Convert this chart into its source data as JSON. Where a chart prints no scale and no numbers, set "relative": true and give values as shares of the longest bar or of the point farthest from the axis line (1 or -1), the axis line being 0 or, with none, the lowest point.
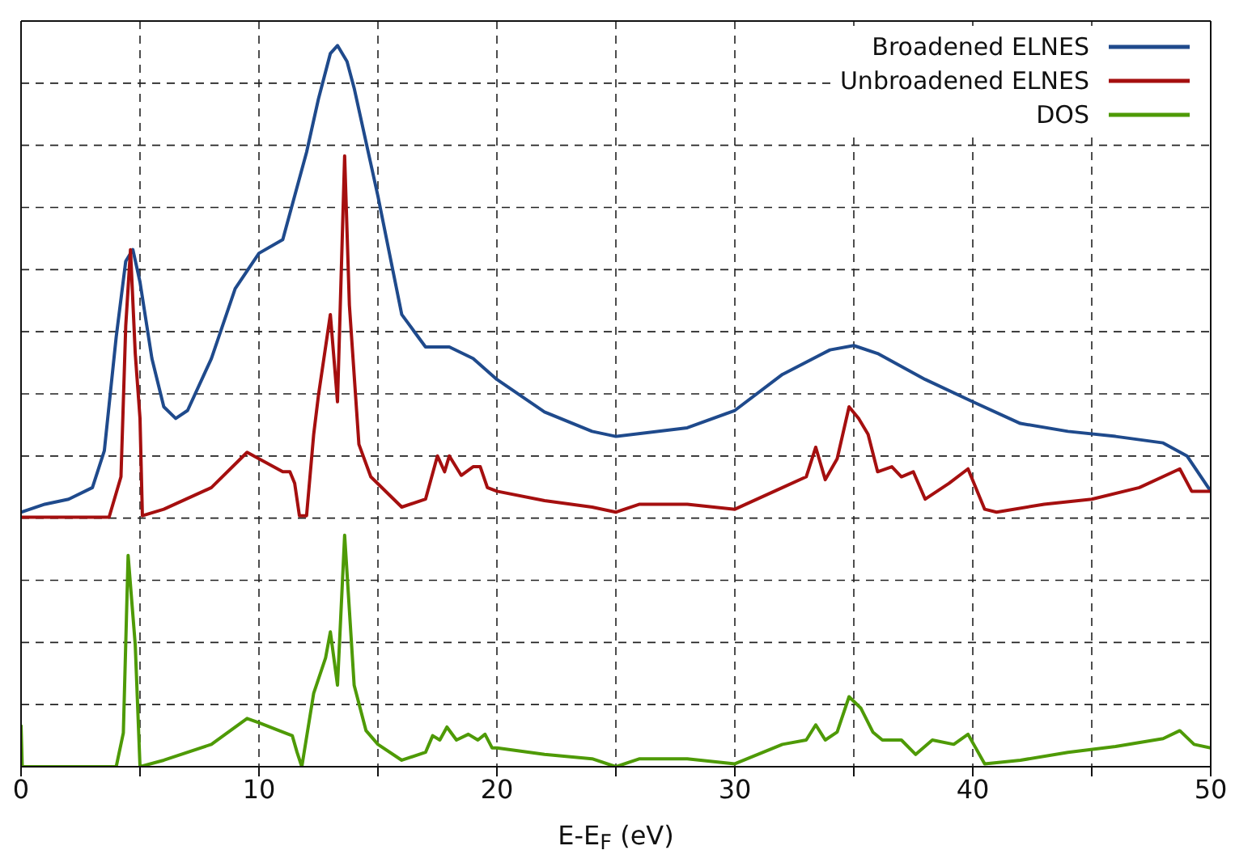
{
  "chart_data": {
    "type": "line",
    "relative": true,
    "xlabel": "E-E$_{F}$ (eV)",
    "xlim": [
      0,
      50
    ],
    "xticks": [
      0,
      {
        "value": 5,
        "label": null
      },
      10,
      {
        "value": 15,
        "label": null
      },
      20,
      {
        "value": 25,
        "label": null
      },
      30,
      {
        "value": 35,
        "label": null
      },
      40,
      {
        "value": 45,
        "label": null
      },
      50
    ],
    "grid": true,
    "legend": "top right",
    "line_style": "solid",
    "marker": "none",
    "series": [
      {
        "name": "Broadened ELNES",
        "color": "#1f4a8c",
        "x": [
          0,
          1,
          2,
          3,
          3.5,
          4,
          4.4,
          4.7,
          5,
          5.5,
          6,
          6.5,
          7,
          8,
          9,
          10,
          11,
          12,
          12.5,
          13,
          13.3,
          13.7,
          14,
          15,
          16,
          17,
          18,
          19,
          20,
          22,
          24,
          25,
          28,
          30,
          32,
          34,
          35,
          36,
          38,
          40,
          42,
          44,
          46,
          48,
          49,
          50
        ],
        "values": [
          0.353,
          0.364,
          0.371,
          0.387,
          0.438,
          0.596,
          0.701,
          0.717,
          0.672,
          0.566,
          0.499,
          0.483,
          0.494,
          0.566,
          0.663,
          0.712,
          0.731,
          0.852,
          0.926,
          0.989,
          1,
          0.978,
          0.941,
          0.791,
          0.627,
          0.582,
          0.582,
          0.566,
          0.537,
          0.492,
          0.465,
          0.458,
          0.47,
          0.494,
          0.544,
          0.578,
          0.584,
          0.573,
          0.537,
          0.506,
          0.476,
          0.465,
          0.458,
          0.449,
          0.431,
          0.382
        ]
      },
      {
        "name": "Unbroadened ELNES",
        "color": "#a50f0f",
        "x": [
          0,
          3.7,
          4.2,
          4.4,
          4.6,
          4.8,
          5,
          5.1,
          6,
          8,
          9.5,
          10,
          11,
          11.3,
          11.5,
          11.7,
          12,
          12.3,
          12.5,
          13,
          13.3,
          13.6,
          13.8,
          14.2,
          14.7,
          16,
          17,
          17.5,
          17.8,
          18,
          18.5,
          19,
          19.3,
          19.6,
          20,
          22,
          24,
          25,
          26,
          28,
          30,
          32,
          33,
          33.4,
          33.8,
          34.3,
          34.8,
          35.2,
          35.6,
          36,
          36.6,
          37,
          37.5,
          38,
          39,
          39.8,
          40.5,
          41,
          43,
          45,
          47,
          48.7,
          49.2,
          50
        ],
        "values": [
          0.346,
          0.346,
          0.402,
          0.611,
          0.717,
          0.573,
          0.483,
          0.348,
          0.357,
          0.387,
          0.436,
          0.427,
          0.409,
          0.409,
          0.393,
          0.348,
          0.348,
          0.461,
          0.515,
          0.627,
          0.506,
          0.847,
          0.64,
          0.447,
          0.402,
          0.36,
          0.371,
          0.431,
          0.409,
          0.431,
          0.404,
          0.416,
          0.416,
          0.387,
          0.382,
          0.369,
          0.36,
          0.353,
          0.364,
          0.364,
          0.357,
          0.387,
          0.402,
          0.443,
          0.398,
          0.427,
          0.499,
          0.483,
          0.461,
          0.409,
          0.416,
          0.402,
          0.409,
          0.371,
          0.393,
          0.413,
          0.357,
          0.353,
          0.364,
          0.371,
          0.387,
          0.413,
          0.382,
          0.382
        ]
      },
      {
        "name": "DOS",
        "color": "#4e9a06",
        "x": [
          0,
          0.05,
          4,
          4.3,
          4.5,
          4.8,
          5,
          6,
          8,
          9.5,
          10,
          11,
          11.4,
          11.6,
          11.8,
          12.3,
          12.8,
          13,
          13.3,
          13.6,
          14,
          14.5,
          15,
          16,
          17,
          17.3,
          17.6,
          17.9,
          18.3,
          18.8,
          19.2,
          19.5,
          19.8,
          20,
          22,
          24,
          25,
          26,
          28,
          30,
          32,
          33,
          33.4,
          33.8,
          34.3,
          34.8,
          35.3,
          35.8,
          36.2,
          37,
          37.6,
          38.3,
          39.2,
          39.8,
          40.5,
          42,
          44,
          46,
          48,
          48.7,
          49.3,
          50
        ],
        "values": [
          0.058,
          0,
          0,
          0.047,
          0.293,
          0.169,
          0,
          0.009,
          0.031,
          0.067,
          0.061,
          0.048,
          0.043,
          0.02,
          0,
          0.102,
          0.151,
          0.187,
          0.113,
          0.321,
          0.113,
          0.05,
          0.031,
          0.009,
          0.02,
          0.043,
          0.037,
          0.055,
          0.037,
          0.045,
          0.037,
          0.045,
          0.026,
          0.026,
          0.017,
          0.011,
          0,
          0.011,
          0.011,
          0.004,
          0.031,
          0.037,
          0.058,
          0.037,
          0.048,
          0.097,
          0.081,
          0.048,
          0.037,
          0.037,
          0.017,
          0.037,
          0.031,
          0.045,
          0.004,
          0.009,
          0.02,
          0.028,
          0.039,
          0.05,
          0.031,
          0.026
        ]
      }
    ]
  }
}
